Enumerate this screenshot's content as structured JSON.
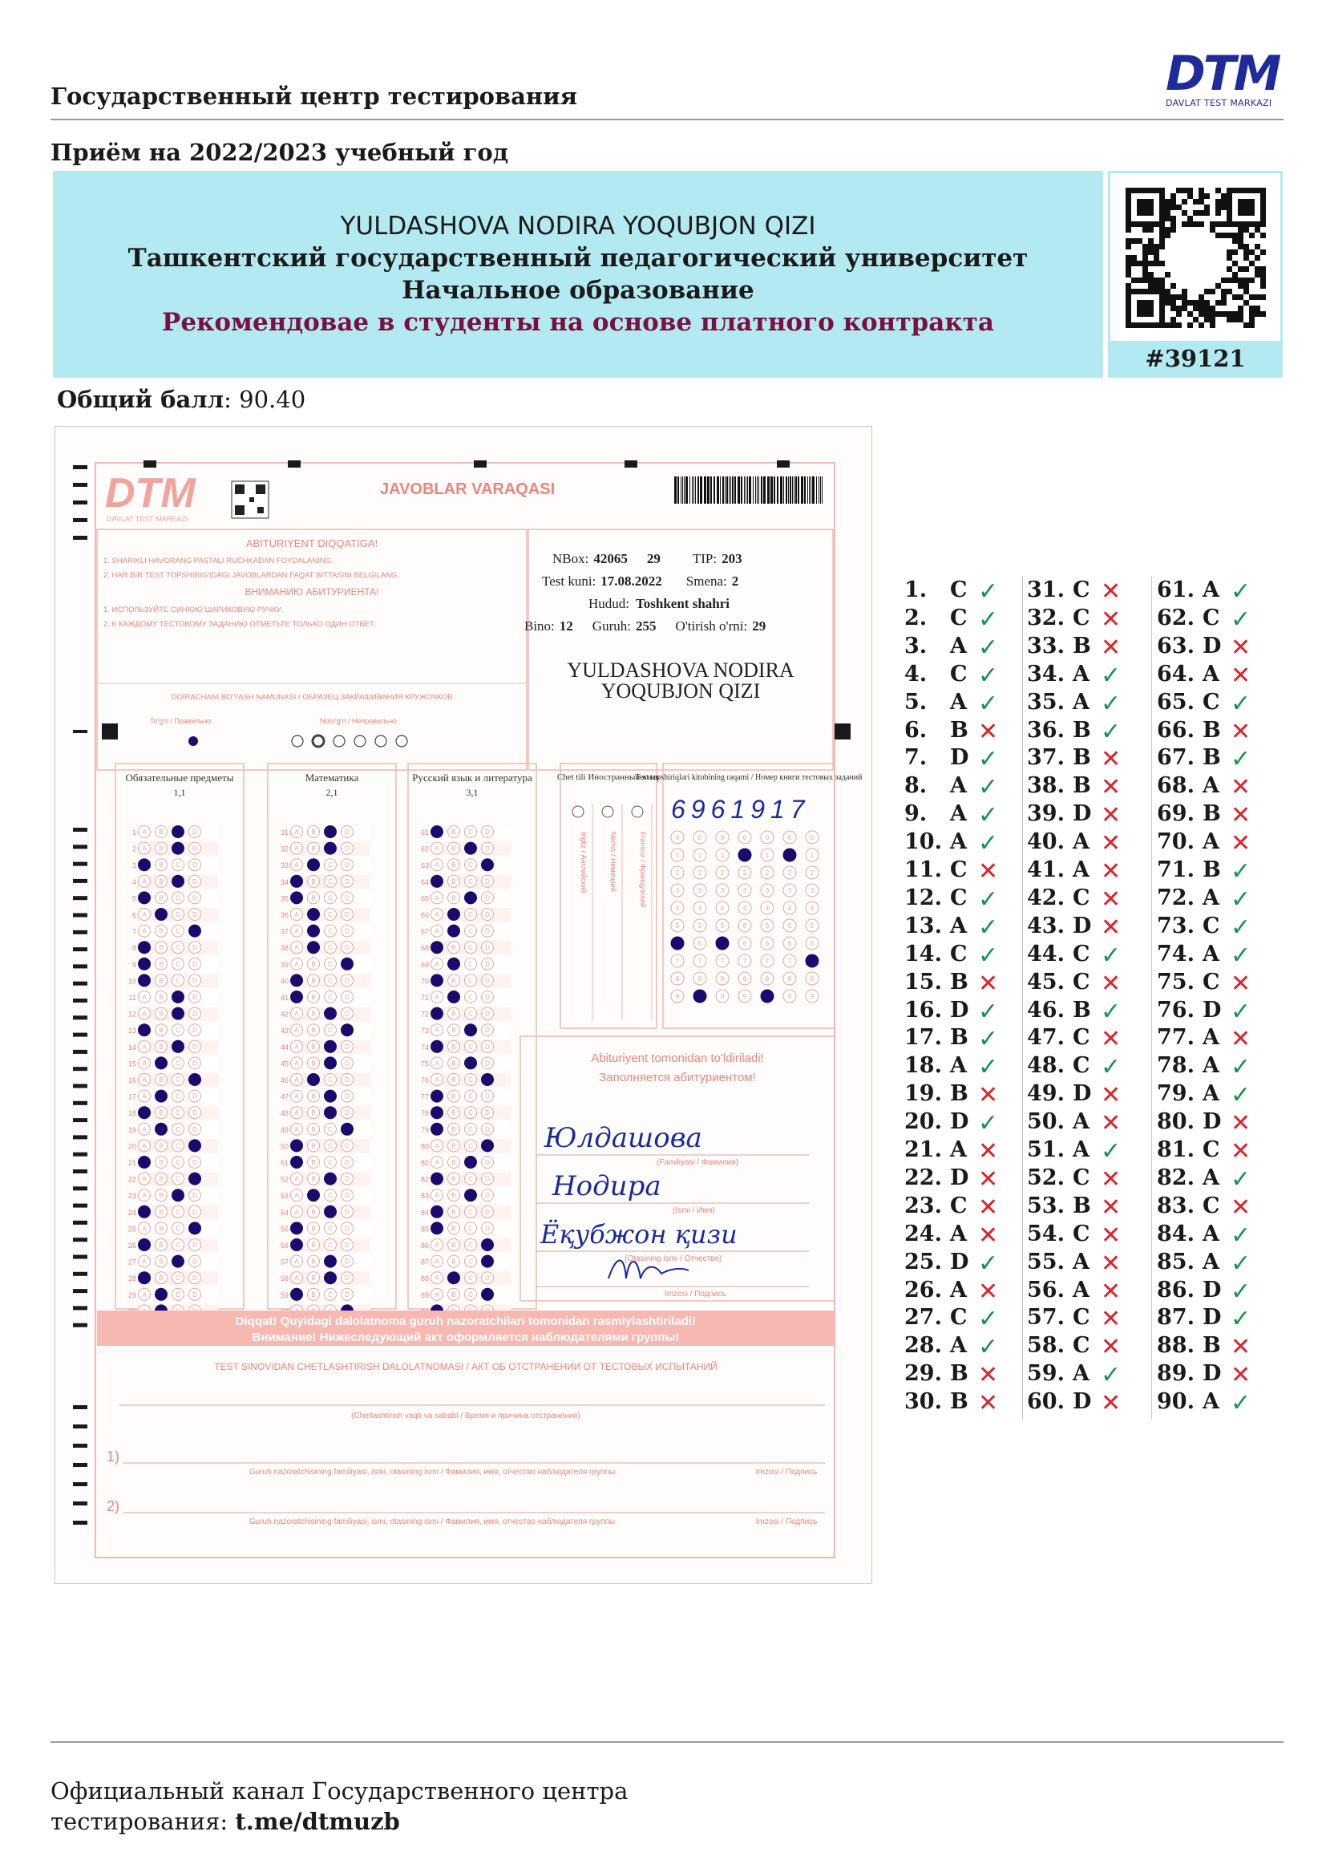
{
  "header": {
    "center_name": "Государственный центр тестирования",
    "logo_text": "DTM",
    "logo_subtext": "DAVLAT TEST MARKAZI",
    "admission_year": "Приём на 2022/2023 учебный год"
  },
  "banner": {
    "student_name": "YULDASHOVA NODIRA YOQUBJON QIZI",
    "university": "Ташкентский государственный педагогический университет",
    "program": "Начальное образование",
    "recommendation": "Рекомендовае в студенты на основе платного контракта",
    "id": "#39121"
  },
  "score": {
    "label": "Общий балл",
    "separator": ": ",
    "value": "90.40"
  },
  "scan": {
    "logo_text": "DTM",
    "logo_subtext": "DAVLAT TEST MARKAZI",
    "title": "JAVOBLAR VARAQASI",
    "attention_title": "ABITURIYENT DIQQATIGA!",
    "attention_1": "1. SHARIKLI HAVORANG PASTALI RUCHKADAN FOYDALANING.",
    "attention_2": "2. HAR BIR TEST TOPSHIRIG'IDAGI JAVOBLARDAN FAQAT BITTASINI BELGILANG.",
    "attention_ru_title": "ВНИМАНИЮ АБИТУРИЕНТА!",
    "attention_ru_1": "1. ИСПОЛЬЗУЙТЕ СИНЮЮ ШАРИКОВУЮ РУЧКУ.",
    "attention_ru_2": "2. К КАЖДОМУ ТЕСТОВОМУ ЗАДАНИЮ ОТМЕТЬТЕ ТОЛЬКО ОДИН ОТВЕТ.",
    "sample_title": "DOIRACHANI BO'YASH NAMUNASI / ОБРАЗЕЦ ЗАКРАШИВАНИЯ КРУЖОЧКОВ",
    "sample_right": "To'g'ri / Правильно",
    "sample_wrong": "Noto'g'ri / Неправильно",
    "info": {
      "nbox_label": "NBox:",
      "nbox": "42065",
      "nbox_extra": "29",
      "tip_label": "TIP:",
      "tip": "203",
      "date_label": "Test kuni:",
      "date": "17.08.2022",
      "smena_label": "Smena:",
      "smena": "2",
      "hudud_label": "Hudud:",
      "hudud": "Toshkent shahri",
      "bino_label": "Bino:",
      "bino": "12",
      "guruh_label": "Guruh:",
      "guruh": "255",
      "orni_label": "O'tirish o'rni:",
      "orni": "29"
    },
    "name_line_1": "YULDASHOVA NODIRA",
    "name_line_2": "YOQUBJON QIZI",
    "subjects": [
      {
        "title": "Обязательные предметы",
        "code": "1,1"
      },
      {
        "title": "Математика",
        "code": "2,1"
      },
      {
        "title": "Русский язык и литература",
        "code": "3,1"
      }
    ],
    "foreign_title": "Chet tili Иностранный язык",
    "foreign_langs": [
      "Ingliz / Английский",
      "Nemis / Немецкий",
      "Fransuz / Французский"
    ],
    "book_title": "Test topshiriqlari kitobining raqami / Номер книги тестовых заданий",
    "book_number": "6961917",
    "fill_title_uz": "Abituriyent tomonidan to'ldiriladi!",
    "fill_title_ru": "Заполняется абитуриентом!",
    "surname_hw": "Юлдашова",
    "surname_label": "(Familiyasi / Фамилия)",
    "firstname_hw": "Нодира",
    "firstname_label": "(Ismi / Имя)",
    "patronymic_hw": "Ёқубжон қизи",
    "patronymic_label": "(Otasining ismi / Отчество)",
    "signature_label": "Imzosi / Подпись",
    "warning_uz": "Diqqat! Quyidagi dalolatnoma guruh nazoratchilari tomonidan rasmiylashtiriladi!",
    "warning_ru": "Внимание! Нижеследующий акт оформляется наблюдателями группы!",
    "removal_title": "TEST SINOVIDAN CHETLASHTIRISH DALOLATNOMASI / АКТ ОБ ОТСТРАНЕНИИ ОТ ТЕСТОВЫХ ИСПЫТАНИЙ",
    "removal_reason": "(Chetlashtirish vaqti va sababi / Время и причина отстранения)",
    "line1_num": "1)",
    "line2_num": "2)",
    "supervisor_label": "Guruh nazoratchisining familiyasi, ismi, otasining ismi / Фамилия, имя, отчество наблюдателя группы",
    "imzo_label": "Imzosi / Подпись",
    "sheet_marks": [
      "C",
      "C",
      "A",
      "C",
      "A",
      "B",
      "D",
      "A",
      "A",
      "A",
      "C",
      "C",
      "A",
      "C",
      "B",
      "D",
      "B",
      "A",
      "B",
      "D",
      "A",
      "D",
      "C",
      "A",
      "D",
      "A",
      "C",
      "A",
      "B",
      "B",
      "C",
      "C",
      "B",
      "A",
      "A",
      "B",
      "B",
      "B",
      "D",
      "A",
      "A",
      "C",
      "D",
      "C",
      "C",
      "B",
      "C",
      "C",
      "D",
      "A",
      "A",
      "C",
      "B",
      "C",
      "A",
      "A",
      "C",
      "C",
      "A",
      "D",
      "A",
      "C",
      "D",
      "A",
      "C",
      "B",
      "B",
      "A",
      "B",
      "A",
      "B",
      "A",
      "C",
      "A",
      "C",
      "D",
      "A",
      "A",
      "A",
      "D",
      "C",
      "A",
      "C",
      "A",
      "A",
      "D",
      "D",
      "B",
      "D",
      "A"
    ]
  },
  "answers": [
    {
      "n": "1.",
      "a": "C",
      "ok": true
    },
    {
      "n": "2.",
      "a": "C",
      "ok": true
    },
    {
      "n": "3.",
      "a": "A",
      "ok": true
    },
    {
      "n": "4.",
      "a": "C",
      "ok": true
    },
    {
      "n": "5.",
      "a": "A",
      "ok": true
    },
    {
      "n": "6.",
      "a": "B",
      "ok": false
    },
    {
      "n": "7.",
      "a": "D",
      "ok": true
    },
    {
      "n": "8.",
      "a": "A",
      "ok": true
    },
    {
      "n": "9.",
      "a": "A",
      "ok": true
    },
    {
      "n": "10.",
      "a": "A",
      "ok": true
    },
    {
      "n": "11.",
      "a": "C",
      "ok": false
    },
    {
      "n": "12.",
      "a": "C",
      "ok": true
    },
    {
      "n": "13.",
      "a": "A",
      "ok": true
    },
    {
      "n": "14.",
      "a": "C",
      "ok": true
    },
    {
      "n": "15.",
      "a": "B",
      "ok": false
    },
    {
      "n": "16.",
      "a": "D",
      "ok": true
    },
    {
      "n": "17.",
      "a": "B",
      "ok": true
    },
    {
      "n": "18.",
      "a": "A",
      "ok": true
    },
    {
      "n": "19.",
      "a": "B",
      "ok": false
    },
    {
      "n": "20.",
      "a": "D",
      "ok": true
    },
    {
      "n": "21.",
      "a": "A",
      "ok": false
    },
    {
      "n": "22.",
      "a": "D",
      "ok": false
    },
    {
      "n": "23.",
      "a": "C",
      "ok": false
    },
    {
      "n": "24.",
      "a": "A",
      "ok": false
    },
    {
      "n": "25.",
      "a": "D",
      "ok": true
    },
    {
      "n": "26.",
      "a": "A",
      "ok": false
    },
    {
      "n": "27.",
      "a": "C",
      "ok": true
    },
    {
      "n": "28.",
      "a": "A",
      "ok": true
    },
    {
      "n": "29.",
      "a": "B",
      "ok": false
    },
    {
      "n": "30.",
      "a": "B",
      "ok": false
    },
    {
      "n": "31.",
      "a": "C",
      "ok": false
    },
    {
      "n": "32.",
      "a": "C",
      "ok": false
    },
    {
      "n": "33.",
      "a": "B",
      "ok": false
    },
    {
      "n": "34.",
      "a": "A",
      "ok": true
    },
    {
      "n": "35.",
      "a": "A",
      "ok": true
    },
    {
      "n": "36.",
      "a": "B",
      "ok": true
    },
    {
      "n": "37.",
      "a": "B",
      "ok": false
    },
    {
      "n": "38.",
      "a": "B",
      "ok": false
    },
    {
      "n": "39.",
      "a": "D",
      "ok": false
    },
    {
      "n": "40.",
      "a": "A",
      "ok": false
    },
    {
      "n": "41.",
      "a": "A",
      "ok": false
    },
    {
      "n": "42.",
      "a": "C",
      "ok": false
    },
    {
      "n": "43.",
      "a": "D",
      "ok": false
    },
    {
      "n": "44.",
      "a": "C",
      "ok": true
    },
    {
      "n": "45.",
      "a": "C",
      "ok": false
    },
    {
      "n": "46.",
      "a": "B",
      "ok": true
    },
    {
      "n": "47.",
      "a": "C",
      "ok": false
    },
    {
      "n": "48.",
      "a": "C",
      "ok": true
    },
    {
      "n": "49.",
      "a": "D",
      "ok": false
    },
    {
      "n": "50.",
      "a": "A",
      "ok": false
    },
    {
      "n": "51.",
      "a": "A",
      "ok": true
    },
    {
      "n": "52.",
      "a": "C",
      "ok": false
    },
    {
      "n": "53.",
      "a": "B",
      "ok": false
    },
    {
      "n": "54.",
      "a": "C",
      "ok": false
    },
    {
      "n": "55.",
      "a": "A",
      "ok": false
    },
    {
      "n": "56.",
      "a": "A",
      "ok": false
    },
    {
      "n": "57.",
      "a": "C",
      "ok": false
    },
    {
      "n": "58.",
      "a": "C",
      "ok": false
    },
    {
      "n": "59.",
      "a": "A",
      "ok": true
    },
    {
      "n": "60.",
      "a": "D",
      "ok": false
    },
    {
      "n": "61.",
      "a": "A",
      "ok": true
    },
    {
      "n": "62.",
      "a": "C",
      "ok": true
    },
    {
      "n": "63.",
      "a": "D",
      "ok": false
    },
    {
      "n": "64.",
      "a": "A",
      "ok": false
    },
    {
      "n": "65.",
      "a": "C",
      "ok": true
    },
    {
      "n": "66.",
      "a": "B",
      "ok": false
    },
    {
      "n": "67.",
      "a": "B",
      "ok": true
    },
    {
      "n": "68.",
      "a": "A",
      "ok": false
    },
    {
      "n": "69.",
      "a": "B",
      "ok": false
    },
    {
      "n": "70.",
      "a": "A",
      "ok": false
    },
    {
      "n": "71.",
      "a": "B",
      "ok": true
    },
    {
      "n": "72.",
      "a": "A",
      "ok": true
    },
    {
      "n": "73.",
      "a": "C",
      "ok": true
    },
    {
      "n": "74.",
      "a": "A",
      "ok": true
    },
    {
      "n": "75.",
      "a": "C",
      "ok": false
    },
    {
      "n": "76.",
      "a": "D",
      "ok": true
    },
    {
      "n": "77.",
      "a": "A",
      "ok": false
    },
    {
      "n": "78.",
      "a": "A",
      "ok": true
    },
    {
      "n": "79.",
      "a": "A",
      "ok": true
    },
    {
      "n": "80.",
      "a": "D",
      "ok": false
    },
    {
      "n": "81.",
      "a": "C",
      "ok": false
    },
    {
      "n": "82.",
      "a": "A",
      "ok": true
    },
    {
      "n": "83.",
      "a": "C",
      "ok": false
    },
    {
      "n": "84.",
      "a": "A",
      "ok": true
    },
    {
      "n": "85.",
      "a": "A",
      "ok": true
    },
    {
      "n": "86.",
      "a": "D",
      "ok": true
    },
    {
      "n": "87.",
      "a": "D",
      "ok": true
    },
    {
      "n": "88.",
      "a": "B",
      "ok": false
    },
    {
      "n": "89.",
      "a": "D",
      "ok": false
    },
    {
      "n": "90.",
      "a": "A",
      "ok": true
    }
  ],
  "marks": {
    "correct_icon": "check-icon",
    "wrong_icon": "cross-icon",
    "correct_color": "#1a9050",
    "wrong_color": "#d6262e"
  },
  "footer": {
    "line1": "Официальный канал Государственного центра",
    "line2_prefix": "тестирования: ",
    "link": "t.me/dtmuzb"
  },
  "colors": {
    "banner_bg": "#b3eaf1",
    "recommendation": "#7a1040",
    "logo": "#1f2a9b",
    "scan_pink": "#f3a9a3",
    "bubble_ink": "#1a0a6e"
  }
}
